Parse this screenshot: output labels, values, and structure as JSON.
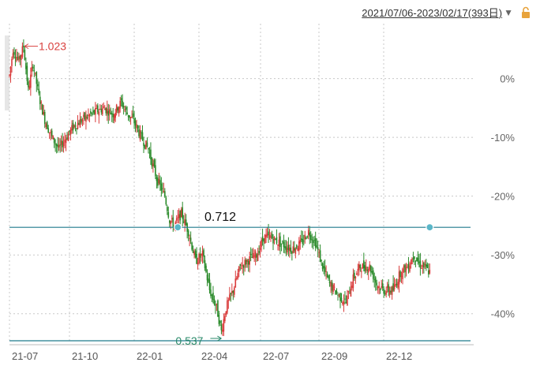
{
  "header": {
    "date_range": "2021/07/06-2023/02/17(393日)",
    "dropdown_icon": "chevron-down-icon",
    "lock_icon": "unlock-icon",
    "lock_color": "#e8a33c"
  },
  "chart_data": {
    "type": "candlestick",
    "x_tick_labels": [
      "21-07",
      "21-10",
      "22-01",
      "22-04",
      "22-07",
      "22-09",
      "22-12"
    ],
    "y_tick_labels": [
      "0%",
      "-10%",
      "-20%",
      "-30%",
      "-40%"
    ],
    "y_ticks": [
      0,
      -10,
      -20,
      -30,
      -40
    ],
    "ylim": [
      -45,
      8
    ],
    "xlim": [
      0,
      393
    ],
    "grid": true,
    "colors": {
      "up": "#d93a3a",
      "down": "#2a8a2a",
      "line": "#1f7a8c",
      "grid": "#c8c8c8"
    },
    "annotations": {
      "high_label": "1.023",
      "high_color": "#d9413f",
      "low_label": "0.537",
      "low_color": "#2a8a6a",
      "mid_label": "0.712"
    },
    "horizontal_lines": [
      -25.3,
      -44.6
    ],
    "path": [
      [
        0,
        0.5
      ],
      [
        3,
        5
      ],
      [
        8,
        3
      ],
      [
        12,
        5.5
      ],
      [
        16,
        -2
      ],
      [
        20,
        2.5
      ],
      [
        25,
        -3
      ],
      [
        30,
        -7
      ],
      [
        36,
        -10
      ],
      [
        42,
        -12
      ],
      [
        48,
        -10
      ],
      [
        55,
        -8
      ],
      [
        62,
        -7
      ],
      [
        70,
        -6
      ],
      [
        80,
        -5
      ],
      [
        88,
        -6
      ],
      [
        95,
        -4
      ],
      [
        100,
        -6
      ],
      [
        105,
        -7
      ],
      [
        112,
        -10
      ],
      [
        118,
        -12
      ],
      [
        125,
        -17
      ],
      [
        132,
        -20
      ],
      [
        136,
        -24
      ],
      [
        140,
        -25
      ],
      [
        146,
        -23
      ],
      [
        152,
        -26
      ],
      [
        158,
        -31
      ],
      [
        164,
        -30
      ],
      [
        170,
        -36
      ],
      [
        176,
        -39
      ],
      [
        180,
        -43
      ],
      [
        184,
        -39
      ],
      [
        190,
        -36
      ],
      [
        196,
        -32
      ],
      [
        202,
        -31
      ],
      [
        210,
        -30
      ],
      [
        216,
        -27
      ],
      [
        222,
        -27
      ],
      [
        230,
        -28
      ],
      [
        240,
        -29
      ],
      [
        248,
        -28
      ],
      [
        254,
        -26
      ],
      [
        260,
        -28
      ],
      [
        266,
        -32
      ],
      [
        272,
        -35
      ],
      [
        280,
        -37
      ],
      [
        286,
        -38
      ],
      [
        292,
        -34
      ],
      [
        298,
        -32
      ],
      [
        306,
        -32
      ],
      [
        312,
        -35
      ],
      [
        318,
        -36
      ],
      [
        326,
        -36
      ],
      [
        332,
        -33
      ],
      [
        338,
        -32
      ],
      [
        344,
        -30
      ],
      [
        348,
        -31.5
      ],
      [
        352,
        -32
      ],
      [
        357,
        -33
      ]
    ],
    "markers": [
      [
        143,
        -25.3
      ],
      [
        357,
        -25.3
      ]
    ]
  }
}
